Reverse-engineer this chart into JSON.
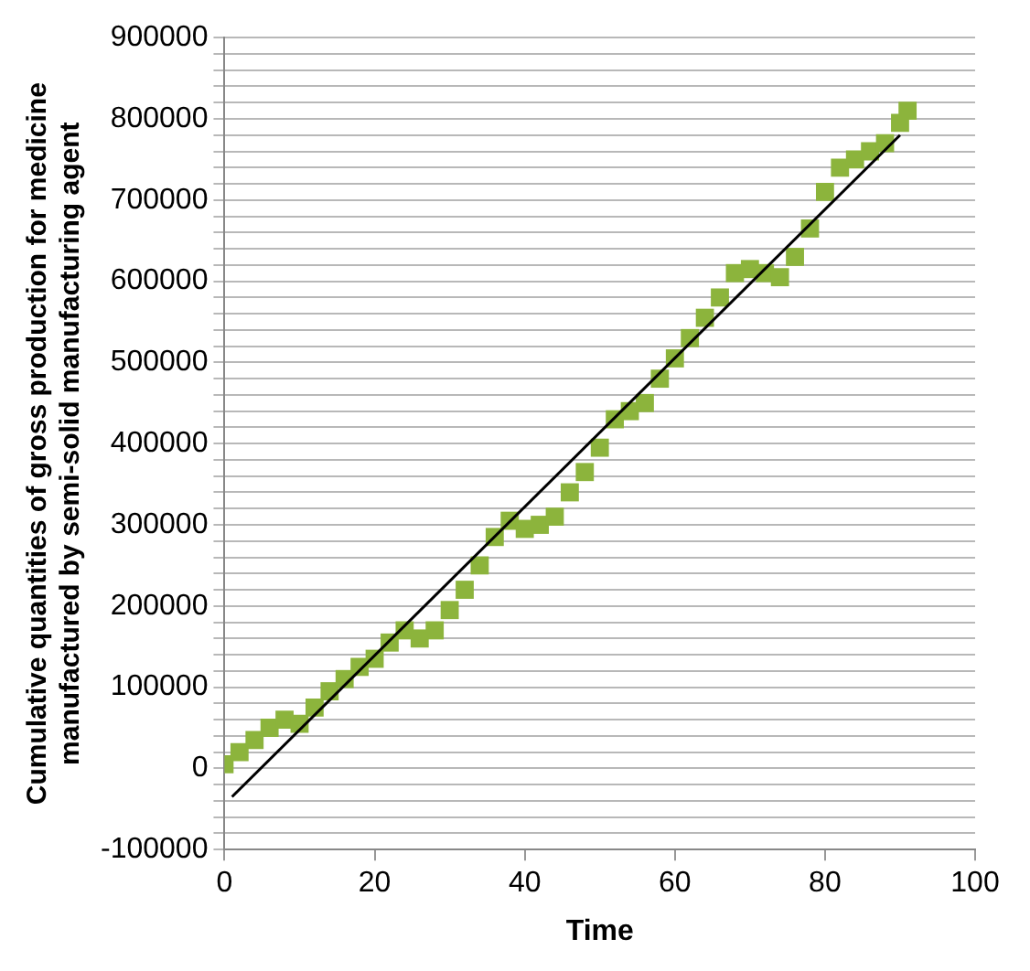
{
  "chart_data": {
    "type": "scatter",
    "xlabel": "Time",
    "ylabel": "Cumulative quantities of gross production for medicine manufactured by semi-solid manufacturing agent",
    "xlim": [
      0,
      100
    ],
    "xticks": [
      0,
      20,
      40,
      60,
      80,
      100
    ],
    "ylim": [
      -100000,
      900000
    ],
    "yticks": [
      -100000,
      {
        "value": -80000,
        "label": null
      },
      {
        "value": -60000,
        "label": null
      },
      {
        "value": -40000,
        "label": null
      },
      {
        "value": -20000,
        "label": null
      },
      0,
      {
        "value": 20000,
        "label": null
      },
      {
        "value": 40000,
        "label": null
      },
      {
        "value": 60000,
        "label": null
      },
      {
        "value": 80000,
        "label": null
      },
      100000,
      {
        "value": 120000,
        "label": null
      },
      {
        "value": 140000,
        "label": null
      },
      {
        "value": 160000,
        "label": null
      },
      {
        "value": 180000,
        "label": null
      },
      200000,
      {
        "value": 220000,
        "label": null
      },
      {
        "value": 240000,
        "label": null
      },
      {
        "value": 260000,
        "label": null
      },
      {
        "value": 280000,
        "label": null
      },
      300000,
      {
        "value": 320000,
        "label": null
      },
      {
        "value": 340000,
        "label": null
      },
      {
        "value": 360000,
        "label": null
      },
      {
        "value": 380000,
        "label": null
      },
      400000,
      {
        "value": 420000,
        "label": null
      },
      {
        "value": 440000,
        "label": null
      },
      {
        "value": 460000,
        "label": null
      },
      {
        "value": 480000,
        "label": null
      },
      500000,
      {
        "value": 520000,
        "label": null
      },
      {
        "value": 540000,
        "label": null
      },
      {
        "value": 560000,
        "label": null
      },
      {
        "value": 580000,
        "label": null
      },
      600000,
      {
        "value": 620000,
        "label": null
      },
      {
        "value": 640000,
        "label": null
      },
      {
        "value": 660000,
        "label": null
      },
      {
        "value": 680000,
        "label": null
      },
      700000,
      {
        "value": 720000,
        "label": null
      },
      {
        "value": 740000,
        "label": null
      },
      {
        "value": 760000,
        "label": null
      },
      {
        "value": 780000,
        "label": null
      },
      800000,
      {
        "value": 820000,
        "label": null
      },
      {
        "value": 840000,
        "label": null
      },
      {
        "value": 860000,
        "label": null
      },
      {
        "value": 880000,
        "label": null
      },
      900000
    ],
    "grid": "y",
    "marker": "square",
    "legend": false,
    "series": [
      {
        "color": "#8cb43c",
        "x": [
          0,
          2,
          4,
          6,
          8,
          10,
          12,
          14,
          16,
          18,
          20,
          22,
          24,
          26,
          28,
          30,
          32,
          34,
          36,
          38,
          40,
          42,
          44,
          46,
          48,
          50,
          52,
          54,
          56,
          58,
          60,
          62,
          64,
          66,
          68,
          70,
          72,
          74,
          76,
          78,
          80,
          82,
          84,
          86,
          88,
          90,
          91
        ],
        "values": [
          5000,
          20000,
          35000,
          50000,
          60000,
          55000,
          75000,
          95000,
          110000,
          125000,
          135000,
          155000,
          170000,
          160000,
          170000,
          195000,
          220000,
          250000,
          285000,
          305000,
          295000,
          300000,
          310000,
          340000,
          365000,
          395000,
          430000,
          440000,
          450000,
          480000,
          505000,
          530000,
          555000,
          580000,
          610000,
          615000,
          610000,
          605000,
          630000,
          665000,
          710000,
          740000,
          750000,
          760000,
          770000,
          795000,
          810000
        ]
      },
      {
        "type": "line",
        "color": "#000000",
        "marker": "none",
        "x": [
          1,
          90
        ],
        "values": [
          -35000,
          780000
        ]
      }
    ]
  }
}
